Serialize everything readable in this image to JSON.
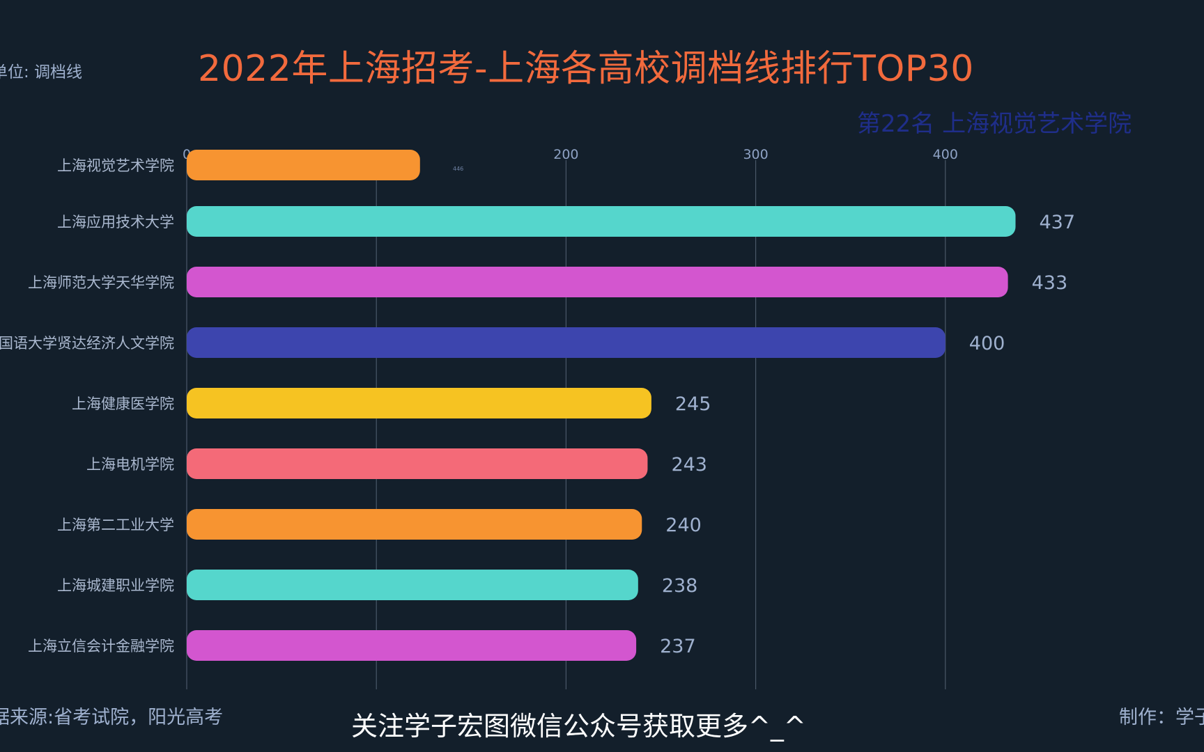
{
  "header": {
    "unit": "单位: 调档线",
    "title": "2022年上海招考-上海各高校调档线排行TOP30",
    "rank_label": "第22名 上海视觉艺术学院"
  },
  "footer": {
    "source": "数据来源:省考试院，阳光高考",
    "cta": "关注学子宏图微信公众号获取更多^_^",
    "maker": "制作：学子"
  },
  "chart_data": {
    "type": "bar",
    "orientation": "horizontal",
    "xlim": [
      0,
      446
    ],
    "x_ticks": [
      0,
      200,
      300,
      400
    ],
    "max_marker": "446",
    "grid": true,
    "categories": [
      "上海视觉艺术学院",
      "上海应用技术大学",
      "上海师范大学天华学院",
      "上海外国语大学贤达经济人文学院",
      "上海健康医学院",
      "上海电机学院",
      "上海第二工业大学",
      "上海城建职业学院",
      "上海立信会计金融学院"
    ],
    "values": [
      123,
      437,
      433,
      400,
      245,
      243,
      240,
      238,
      237
    ],
    "value_labels": [
      "",
      "437",
      "433",
      "400",
      "245",
      "243",
      "240",
      "238",
      "237"
    ],
    "colors": [
      "#f79431",
      "#55d6cc",
      "#d356cf",
      "#3d45ae",
      "#f6c322",
      "#f46a78",
      "#f79431",
      "#55d6cc",
      "#d356cf"
    ]
  }
}
